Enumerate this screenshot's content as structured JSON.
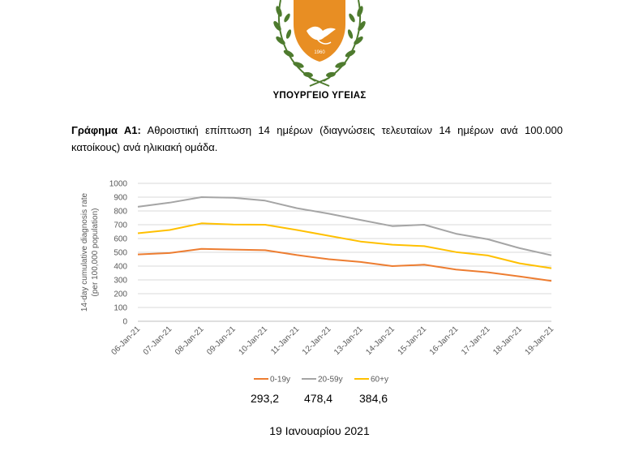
{
  "header": {
    "emblem_year": "1960",
    "ministry": "ΥΠΟΥΡΓΕΙΟ ΥΓΕΙΑΣ"
  },
  "caption": {
    "label": "Γράφημα Α1:",
    "text": " Αθροιστική επίπτωση 14 ημέρων (διαγνώσεις τελευταίων 14 ημέρων ανά 100.000 κατοίκους) ανά ηλικιακή ομάδα."
  },
  "chart_data": {
    "type": "line",
    "ylabel_line1": "14-day cumulative diagnosis rate",
    "ylabel_line2": "(per 100,000 population)",
    "ylim": [
      0,
      1000
    ],
    "yticks": [
      0,
      100,
      200,
      300,
      400,
      500,
      600,
      700,
      800,
      900,
      1000
    ],
    "grid": true,
    "legend_position": "bottom",
    "categories": [
      "06-Jan-21",
      "07-Jan-21",
      "08-Jan-21",
      "09-Jan-21",
      "10-Jan-21",
      "11-Jan-21",
      "12-Jan-21",
      "13-Jan-21",
      "14-Jan-21",
      "15-Jan-21",
      "16-Jan-21",
      "17-Jan-21",
      "18-Jan-21",
      "19-Jan-21"
    ],
    "series": [
      {
        "name": "0-19y",
        "color": "#ED7D31",
        "values": [
          485,
          495,
          525,
          520,
          515,
          480,
          450,
          430,
          400,
          410,
          375,
          355,
          325,
          293.2
        ]
      },
      {
        "name": "20-59y",
        "color": "#A5A5A5",
        "values": [
          830,
          860,
          900,
          895,
          875,
          820,
          780,
          735,
          690,
          700,
          635,
          595,
          530,
          478.4
        ]
      },
      {
        "name": "60+y",
        "color": "#FFC000",
        "values": [
          638,
          662,
          710,
          702,
          700,
          662,
          620,
          578,
          555,
          545,
          502,
          477,
          420,
          384.6
        ]
      }
    ]
  },
  "last_values": [
    "293,2",
    "478,4",
    "384,6"
  ],
  "date": "19 Ιανουαρίου 2021"
}
